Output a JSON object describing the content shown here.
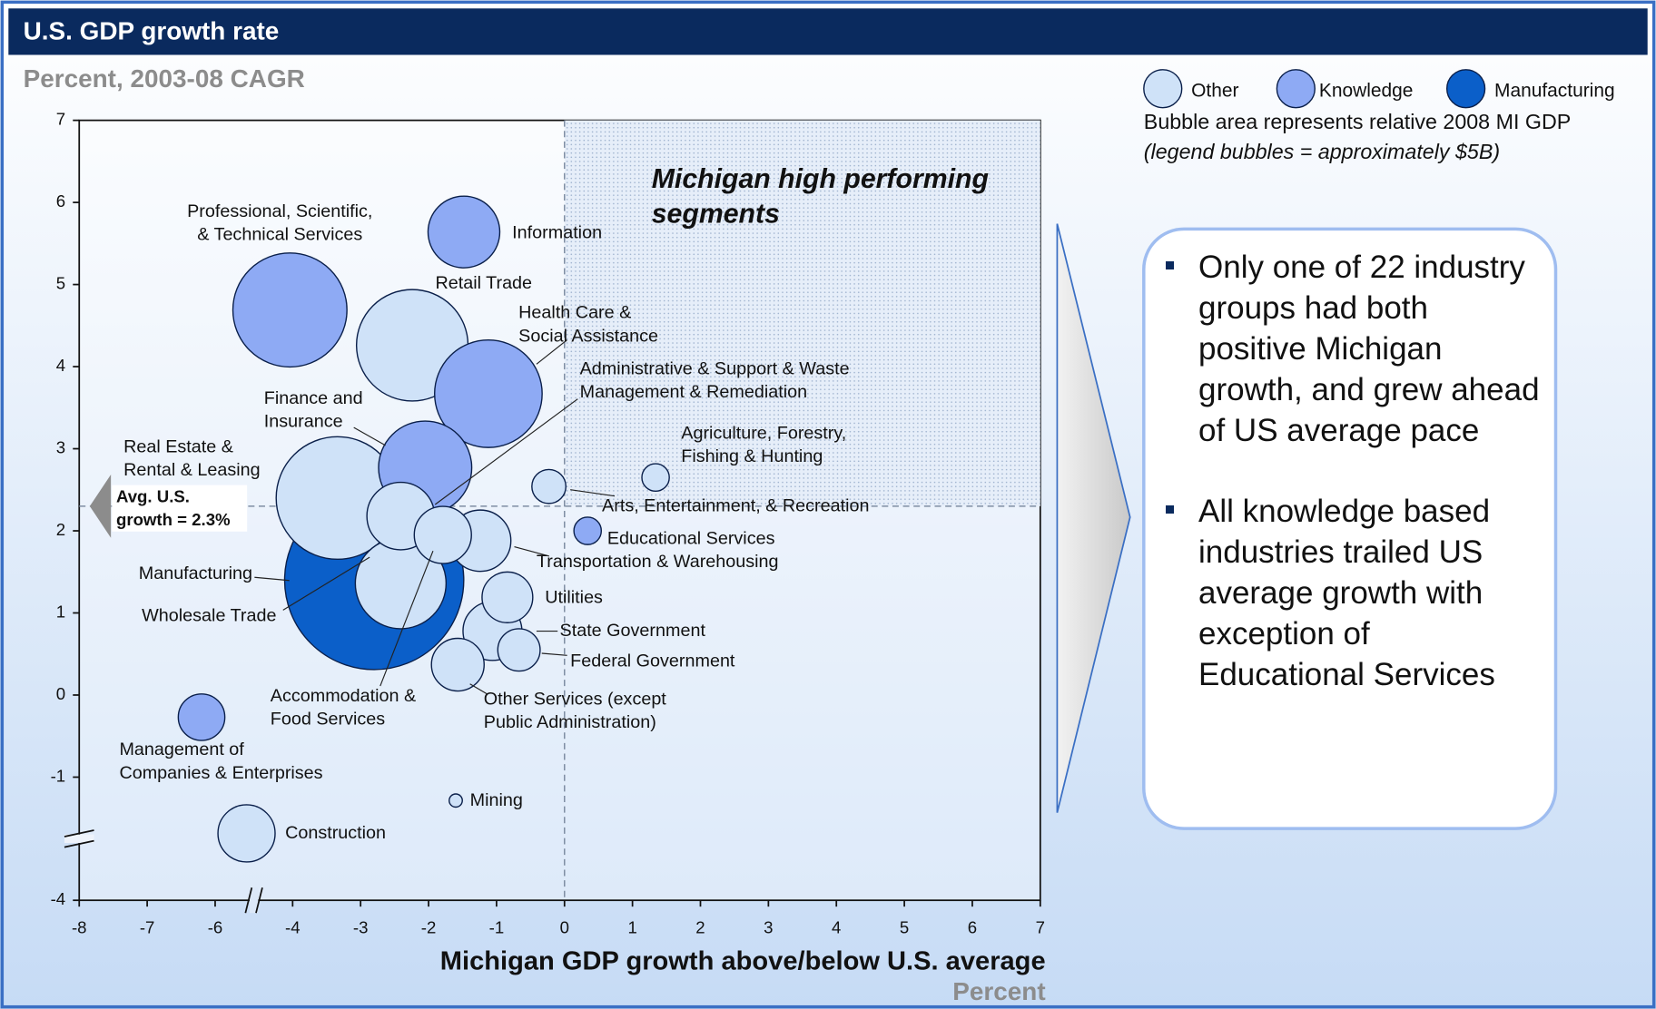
{
  "chart_data": {
    "type": "bubble",
    "title": "U.S.  GDP growth rate",
    "subtitle": "Percent, 2003-08 CAGR",
    "x_label": "Michigan GDP growth above/below U.S. average",
    "x_unit": "Percent",
    "xlim": [
      -8,
      7
    ],
    "ylim": [
      -4,
      7
    ],
    "xticks": [
      -8,
      -7,
      -6,
      -4,
      -3,
      -2,
      -1,
      0,
      1,
      2,
      3,
      4,
      5,
      6,
      7
    ],
    "yticks": [
      -4,
      -1,
      0,
      1,
      2,
      3,
      4,
      5,
      6,
      7
    ],
    "reference_x": 0,
    "reference_y": 2.3,
    "reference_label": [
      "Avg. U.S.",
      "growth = 2.3%"
    ],
    "quadrant_label": [
      "Michigan high performing",
      "segments"
    ],
    "legend_note": "Bubble area represents relative 2008 MI GDP",
    "legend_note_2": "(legend bubbles = approximately $5B)",
    "legend_size": 5,
    "series": [
      {
        "name": "Other",
        "color": "#cfe2f8",
        "points": [
          {
            "label": [
              "Retail Trade"
            ],
            "x": -2.24,
            "y": 4.26,
            "size": 43
          },
          {
            "label": [
              "Real Estate &",
              "Rental & Leasing"
            ],
            "x": -3.34,
            "y": 2.4,
            "size": 52
          },
          {
            "label": [
              "Arts, Entertainment, & Recreation"
            ],
            "x": -0.23,
            "y": 2.54,
            "size": 4
          },
          {
            "label": [
              "Agriculture, Forestry,",
              "Fishing & Hunting"
            ],
            "x": 1.34,
            "y": 2.65,
            "size": 2.6
          },
          {
            "label": [
              "Transportation & Warehousing"
            ],
            "x": -1.24,
            "y": 1.88,
            "size": 13
          },
          {
            "label": [
              "Wholesale Trade"
            ],
            "x": -2.41,
            "y": 1.36,
            "size": 28.5
          },
          {
            "label": [
              "Administrative & Support & Waste",
              "Management & Remediation"
            ],
            "x": -2.41,
            "y": 2.18,
            "size": 15.8
          },
          {
            "label": [
              "Accommodation &",
              "Food Services"
            ],
            "x": -1.79,
            "y": 1.95,
            "size": 11.3
          },
          {
            "label": [
              "Utilities"
            ],
            "x": -0.84,
            "y": 1.19,
            "size": 8.9
          },
          {
            "label": [
              "State Government"
            ],
            "x": -1.06,
            "y": 0.78,
            "size": 12
          },
          {
            "label": [
              "Federal Government"
            ],
            "x": -0.67,
            "y": 0.55,
            "size": 6.2
          },
          {
            "label": [
              "Other Services (except",
              "Public Administration)"
            ],
            "x": -1.57,
            "y": 0.37,
            "size": 9.6
          },
          {
            "label": [
              "Mining"
            ],
            "x": -1.6,
            "y": -1.57,
            "size": 0.6
          },
          {
            "label": [
              "Construction"
            ],
            "x": -5.19,
            "y": -2.37,
            "size": 11.3
          }
        ]
      },
      {
        "name": "Knowledge",
        "color": "#8eaaf4",
        "points": [
          {
            "label": [
              "Information"
            ],
            "x": -1.48,
            "y": 5.64,
            "size": 17.8
          },
          {
            "label": [
              "Professional, Scientific,",
              "& Technical Services"
            ],
            "x": -4.07,
            "y": 4.69,
            "size": 45
          },
          {
            "label": [
              "Health Care &",
              "Social Assistance"
            ],
            "x": -1.12,
            "y": 3.67,
            "size": 40
          },
          {
            "label": [
              "Finance and",
              "Insurance"
            ],
            "x": -2.05,
            "y": 2.77,
            "size": 30
          },
          {
            "label": [
              "Educational Services"
            ],
            "x": 0.34,
            "y": 2.0,
            "size": 2.6
          },
          {
            "label": [
              "Management of",
              "Companies & Enterprises"
            ],
            "x": -6.2,
            "y": -0.27,
            "size": 7.5
          }
        ]
      },
      {
        "name": "Manufacturing",
        "color": "#0b5fc9",
        "points": [
          {
            "label": [
              "Manufacturing"
            ],
            "x": -2.8,
            "y": 1.4,
            "size": 111
          }
        ]
      }
    ],
    "bullets": [
      "Only one of 22 industry groups had both positive Michigan growth, and grew ahead of US average pace",
      "All knowledge based industries trailed US average growth with exception of Educational Services"
    ]
  }
}
